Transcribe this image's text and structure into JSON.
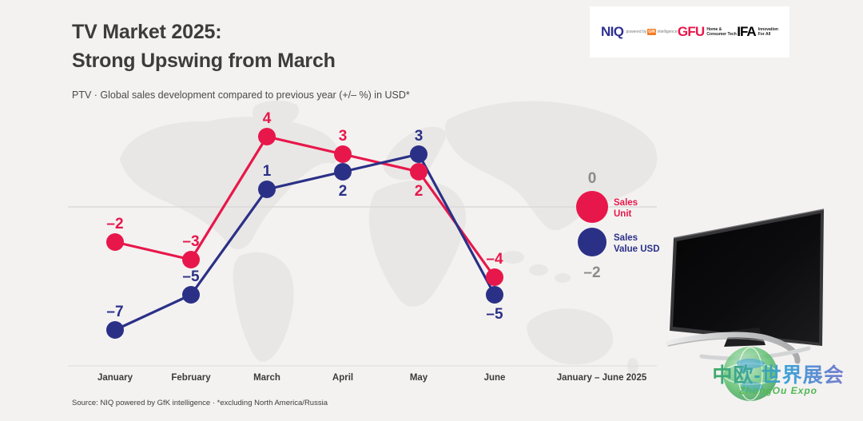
{
  "header": {
    "title_line1": "TV Market 2025:",
    "title_line2": "Strong Upswing from March",
    "subtitle": "PTV · Global sales development compared to previous year (+/– %) in USD*"
  },
  "logos": {
    "niq": {
      "wordmark": "NIQ",
      "powered_by": "powered by",
      "gfk_badge": "GfK",
      "intelligence": "intelligence"
    },
    "gfu": {
      "wordmark": "GFU",
      "tagline_line1": "Home &",
      "tagline_line2": "Consumer Tech"
    },
    "ifa": {
      "wordmark": "IFA",
      "tagline_line1": "Innovation",
      "tagline_line2": "For All"
    }
  },
  "chart_data": {
    "type": "line",
    "categories": [
      "January",
      "February",
      "March",
      "April",
      "May",
      "June"
    ],
    "summary_category": "January – June 2025",
    "series": [
      {
        "name": "Sales Unit",
        "color": "#e8174b",
        "values": [
          -2,
          -3,
          4,
          3,
          2,
          -4
        ],
        "label_positions": [
          "above",
          "above",
          "above",
          "above",
          "below",
          "above"
        ],
        "summary": 0,
        "summary_label_position": "above"
      },
      {
        "name": "Sales Value USD",
        "color": "#2b3087",
        "values": [
          -7,
          -5,
          1,
          2,
          3,
          -5
        ],
        "label_positions": [
          "above",
          "above",
          "above",
          "below",
          "above",
          "below"
        ],
        "summary": -2,
        "summary_label_position": "below"
      }
    ],
    "summary_values_color": "#8c8b8a",
    "axis_text_color": "#3b3b3a",
    "zero_line": true,
    "grid": false,
    "legend_position": "right",
    "ylim": [
      -8,
      5
    ]
  },
  "footer": {
    "source": "Source: NIQ powered by GfK intelligence · *excluding North America/Russia"
  },
  "watermark": {
    "title": "中欧-世界展会",
    "subtitle": "ZhongOu Expo"
  }
}
